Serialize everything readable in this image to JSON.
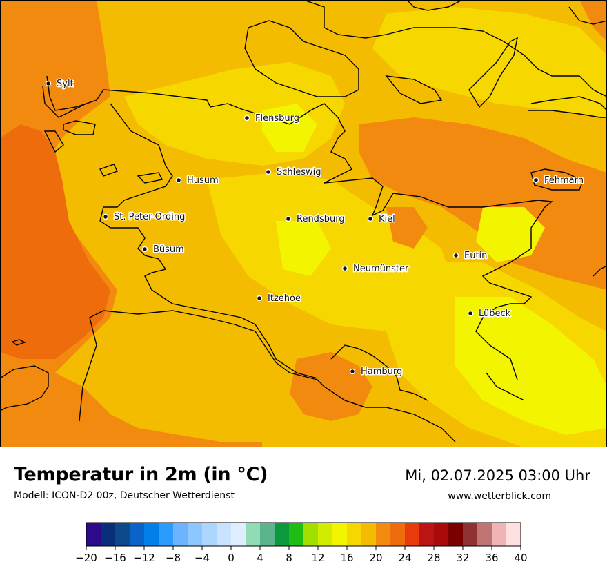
{
  "map": {
    "cities": [
      {
        "name": "Sylt"
      },
      {
        "name": "Flensburg"
      },
      {
        "name": "Schleswig"
      },
      {
        "name": "Husum"
      },
      {
        "name": "Fehmarn"
      },
      {
        "name": "St. Peter-Ording"
      },
      {
        "name": "Rendsburg"
      },
      {
        "name": "Kiel"
      },
      {
        "name": "Büsum"
      },
      {
        "name": "Eutin"
      },
      {
        "name": "Neumünster"
      },
      {
        "name": "Itzehoe"
      },
      {
        "name": "Lübeck"
      },
      {
        "name": "Hamburg"
      }
    ]
  },
  "footer": {
    "title": "Temperatur in 2m (in °C)",
    "subtitle": "Modell: ICON-D2 00z, Deutscher Wetterdienst",
    "datetime": "Mi, 02.07.2025 03:00 Uhr",
    "website": "www.wetterblick.com"
  },
  "legend": {
    "colors": [
      "#2c0a8a",
      "#0a2f7a",
      "#0d4a8c",
      "#0a63c8",
      "#0080e8",
      "#2c9bff",
      "#6cb4ff",
      "#8ec6ff",
      "#add6ff",
      "#c8e2ff",
      "#deedff",
      "#90dcb4",
      "#5cb48c",
      "#0a9a3c",
      "#20bc14",
      "#a0e000",
      "#d2ec00",
      "#f2f400",
      "#f6d800",
      "#f4bc00",
      "#f28a10",
      "#ee6c0c",
      "#e83a0c",
      "#bc1414",
      "#aa0a0a",
      "#7a0000",
      "#8e3232",
      "#c07474",
      "#f0b4b4",
      "#ffe0e0"
    ],
    "tick_labels": [
      "−20",
      "−16",
      "−12",
      "−8",
      "−4",
      "0",
      "4",
      "8",
      "12",
      "16",
      "20",
      "24",
      "28",
      "32",
      "36",
      "40"
    ]
  }
}
